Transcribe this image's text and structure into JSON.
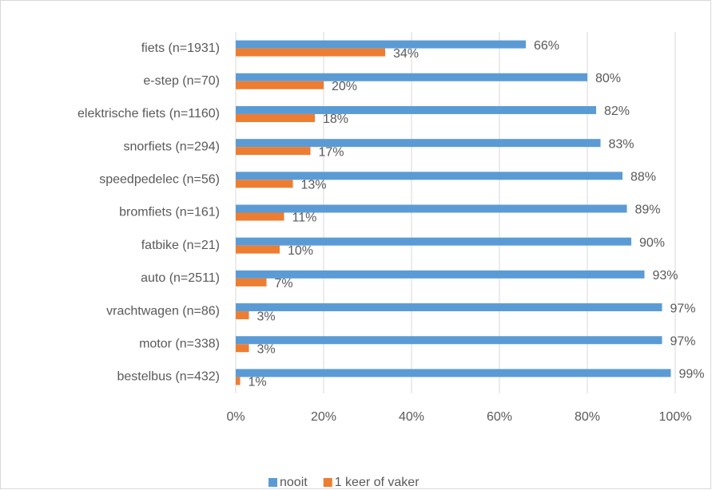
{
  "chart_data": {
    "type": "hbar",
    "categories": [
      "fiets (n=1931)",
      "e-step (n=70)",
      "elektrische fiets (n=1160)",
      "snorfiets (n=294)",
      "speedpedelec (n=56)",
      "bromfiets (n=161)",
      "fatbike (n=21)",
      "auto (n=2511)",
      "vrachtwagen (n=86)",
      "motor (n=338)",
      "bestelbus (n=432)"
    ],
    "series": [
      {
        "name": "nooit",
        "color": "#5b9bd5",
        "values": [
          66,
          80,
          82,
          83,
          88,
          89,
          90,
          93,
          97,
          97,
          99
        ],
        "value_labels": [
          "66%",
          "80%",
          "82%",
          "83%",
          "88%",
          "89%",
          "90%",
          "93%",
          "97%",
          "97%",
          "99%"
        ]
      },
      {
        "name": "1 keer of vaker",
        "color": "#ed7d31",
        "values": [
          34,
          20,
          18,
          17,
          13,
          11,
          10,
          7,
          3,
          3,
          1
        ],
        "value_labels": [
          "34%",
          "20%",
          "18%",
          "17%",
          "13%",
          "11%",
          "10%",
          "7%",
          "3%",
          "3%",
          "1%"
        ]
      }
    ],
    "xlim": [
      0,
      100
    ],
    "xticks": [
      {
        "value": 0,
        "label": "0%"
      },
      {
        "value": 20,
        "label": "20%"
      },
      {
        "value": 40,
        "label": "40%"
      },
      {
        "value": 60,
        "label": "60%"
      },
      {
        "value": 80,
        "label": "80%"
      },
      {
        "value": 100,
        "label": "100%"
      }
    ],
    "grid": true,
    "legend": "bottom"
  }
}
